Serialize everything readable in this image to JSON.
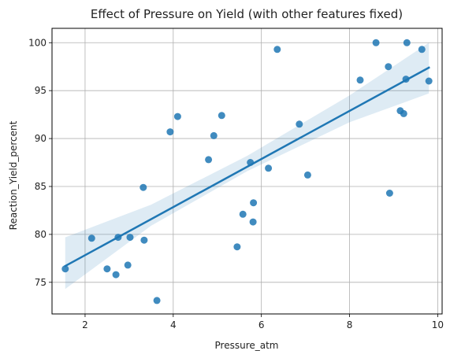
{
  "chart_data": {
    "type": "scatter",
    "title": "Effect of Pressure on Yield (with other features fixed)",
    "xlabel": "Pressure_atm",
    "ylabel": "Reaction_Yield_percent",
    "xlim": [
      1.25,
      10.1
    ],
    "ylim": [
      71.7,
      101.5
    ],
    "xticks": [
      2,
      4,
      6,
      8,
      10
    ],
    "yticks": [
      75,
      80,
      85,
      90,
      95,
      100
    ],
    "xtick_labels": [
      "2",
      "4",
      "6",
      "8",
      "10"
    ],
    "ytick_labels": [
      "75",
      "80",
      "85",
      "90",
      "95",
      "100"
    ],
    "grid": true,
    "colors": {
      "points": "#1f77b4",
      "line": "#1f77b4",
      "band": "#1f77b4",
      "grid": "#b0b0b0"
    },
    "series": [
      {
        "kind": "points",
        "x": [
          1.55,
          2.15,
          2.5,
          2.7,
          2.75,
          2.97,
          3.02,
          3.32,
          3.34,
          3.63,
          3.93,
          4.1,
          4.8,
          4.92,
          5.1,
          5.45,
          5.58,
          5.75,
          5.81,
          5.82,
          6.16,
          6.36,
          6.86,
          7.05,
          8.24,
          8.6,
          8.88,
          8.91,
          9.15,
          9.23,
          9.28,
          9.3,
          9.64,
          9.8
        ],
        "y": [
          76.4,
          79.6,
          76.4,
          75.8,
          79.7,
          76.8,
          79.7,
          84.9,
          79.4,
          73.1,
          90.7,
          92.3,
          87.8,
          90.3,
          92.4,
          78.7,
          82.1,
          87.5,
          81.3,
          83.3,
          86.9,
          99.3,
          91.5,
          86.2,
          96.1,
          100.0,
          97.5,
          84.3,
          92.9,
          92.6,
          96.2,
          100.0,
          99.3,
          96.0
        ]
      },
      {
        "kind": "regression",
        "x": [
          1.55,
          9.8
        ],
        "y": [
          76.7,
          97.4
        ]
      },
      {
        "kind": "confidence_band",
        "x": [
          1.55,
          3.5,
          5.68,
          8.0,
          9.8
        ],
        "lower": [
          74.3,
          80.9,
          86.6,
          91.7,
          94.7
        ],
        "upper": [
          79.7,
          83.1,
          88.2,
          94.5,
          100.0
        ]
      }
    ]
  }
}
